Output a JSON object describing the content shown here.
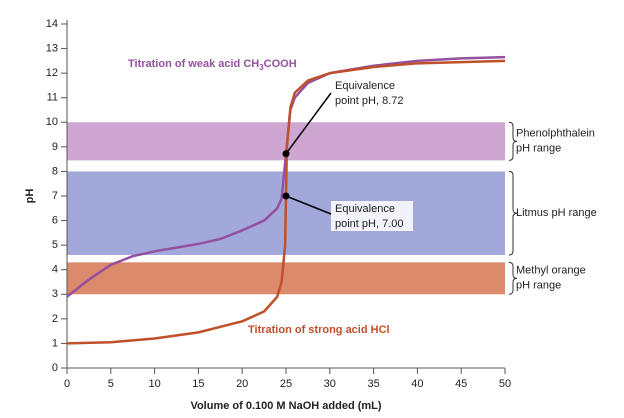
{
  "chart_data": {
    "type": "line",
    "x_label": "Volume of 0.100 M NaOH added (mL)",
    "y_label": "pH",
    "xlim": [
      0,
      50
    ],
    "ylim": [
      0,
      14
    ],
    "xticks": [
      0,
      5,
      10,
      15,
      20,
      25,
      30,
      35,
      40,
      45,
      50
    ],
    "yticks": [
      0,
      1,
      2,
      3,
      4,
      5,
      6,
      7,
      8,
      9,
      10,
      11,
      12,
      13,
      14
    ],
    "bands": [
      {
        "label": [
          "Phenolphthalein",
          "pH range"
        ],
        "range": [
          8.45,
          10
        ],
        "color": "#cfa5d1"
      },
      {
        "label": [
          "Litmus pH range"
        ],
        "range": [
          4.6,
          8
        ],
        "color": "#a3a8db"
      },
      {
        "label": [
          "Methyl orange",
          "pH range"
        ],
        "range": [
          3,
          4.3
        ],
        "color": "#dc8a6c"
      }
    ],
    "series": [
      {
        "label": [
          "Titration of weak acid CH",
          "3",
          "COOH"
        ],
        "color": "#94519f",
        "x": [
          0,
          2.5,
          5,
          7.5,
          10,
          12.5,
          15,
          17.5,
          20,
          22.5,
          24,
          24.5,
          25,
          25.5,
          26,
          27.5,
          30,
          35,
          40,
          45,
          50
        ],
        "values": [
          2.9,
          3.6,
          4.2,
          4.55,
          4.75,
          4.9,
          5.05,
          5.25,
          5.6,
          6.0,
          6.5,
          6.9,
          8.72,
          10.5,
          11.0,
          11.6,
          12.0,
          12.3,
          12.5,
          12.6,
          12.65
        ]
      },
      {
        "label": [
          "Titration of strong acid HCl"
        ],
        "color": "#c0502a",
        "x": [
          0,
          5,
          10,
          15,
          20,
          22.5,
          24,
          24.5,
          24.9,
          25,
          25.1,
          25.5,
          26,
          27.5,
          30,
          35,
          40,
          45,
          50
        ],
        "values": [
          1.0,
          1.05,
          1.2,
          1.45,
          1.9,
          2.3,
          2.9,
          3.5,
          5.0,
          7.0,
          9.0,
          10.6,
          11.2,
          11.7,
          12.0,
          12.25,
          12.4,
          12.45,
          12.5
        ]
      }
    ],
    "annotations": [
      {
        "x": 25,
        "y": 8.72,
        "lines": [
          "Equivalence",
          "point pH, 8.72"
        ]
      },
      {
        "x": 25,
        "y": 7.0,
        "lines": [
          "Equivalence",
          "point pH, 7.00"
        ]
      }
    ]
  }
}
